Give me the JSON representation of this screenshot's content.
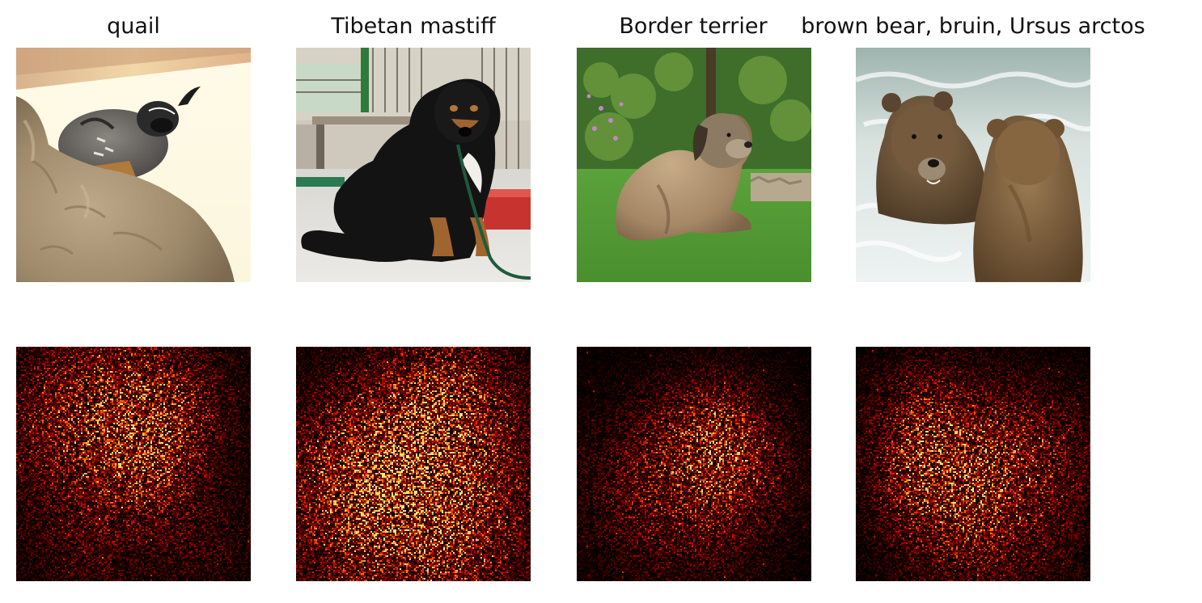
{
  "panels": [
    {
      "label": "quail",
      "photo_subject": "quail-on-rock",
      "heatmap_focus": "bird-head-and-body"
    },
    {
      "label": "Tibetan mastiff",
      "photo_subject": "black-dog-sitting",
      "heatmap_focus": "dog-body"
    },
    {
      "label": "Border terrier",
      "photo_subject": "dog-lying-on-grass",
      "heatmap_focus": "dog-head"
    },
    {
      "label": "brown bear, bruin, Ursus arctos",
      "photo_subject": "two-bears-in-water",
      "heatmap_focus": "left-bear"
    }
  ],
  "colors": {
    "heatmap_low": "#000000",
    "heatmap_mid": "#b22b00",
    "heatmap_high": "#ffd27a",
    "background": "#ffffff"
  }
}
